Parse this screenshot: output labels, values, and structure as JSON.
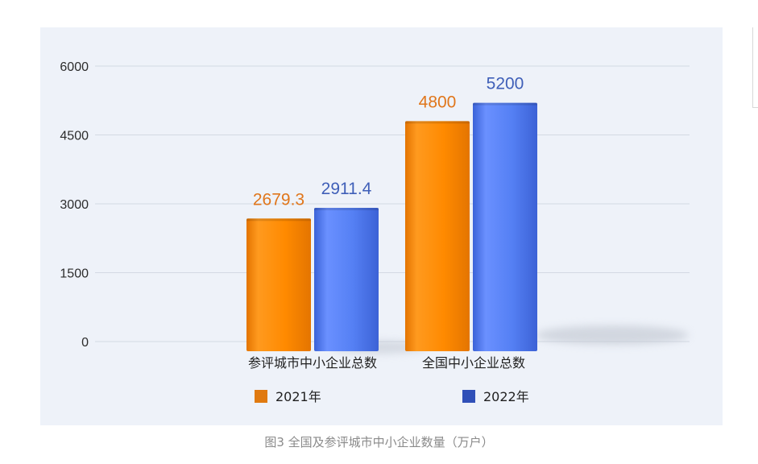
{
  "chart_data": {
    "type": "bar",
    "categories": [
      "参评城市中小企业总数",
      "全国中小企业总数"
    ],
    "series": [
      {
        "name": "2021年",
        "values": [
          2679.3,
          4800
        ],
        "color": "#fb8c00"
      },
      {
        "name": "2022年",
        "values": [
          2911.4,
          5200
        ],
        "color": "#4a72e8"
      }
    ],
    "value_labels": [
      [
        "2679.3",
        "4800"
      ],
      [
        "2911.4",
        "5200"
      ]
    ],
    "label_colors": [
      "#e0761b",
      "#3f5fb8"
    ],
    "legend_colors": [
      "#e07a10",
      "#3050b8"
    ],
    "yticks": [
      "0",
      "1500",
      "3000",
      "4500",
      "6000"
    ],
    "ylim": [
      0,
      6000
    ],
    "grid": true,
    "legend_position": "bottom",
    "title": "",
    "xlabel": "",
    "ylabel": ""
  },
  "caption": "图3 全国及参评城市中小企业数量（万户）"
}
